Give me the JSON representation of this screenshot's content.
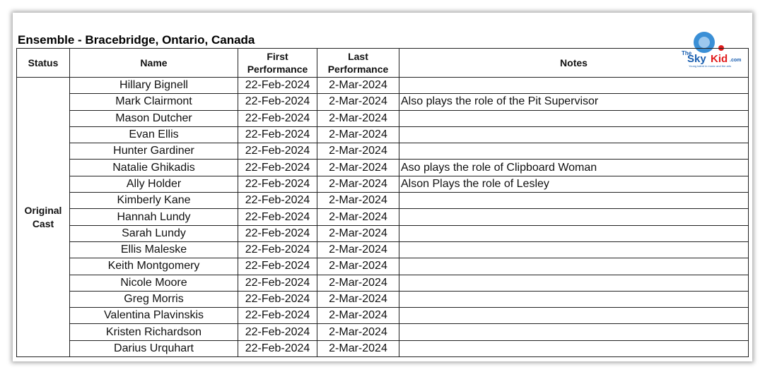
{
  "title": "Ensemble - Bracebridge, Ontario, Canada",
  "logo": {
    "text_the": "The",
    "text_sky": "Sky",
    "text_kid": "Kid",
    ".com": ".com",
    "tagline": "Young talent in music and the arts"
  },
  "headers": {
    "status": "Status",
    "name": "Name",
    "first": "First Performance",
    "last": "Last Performance",
    "notes": "Notes"
  },
  "status_group": "Original Cast",
  "rows": [
    {
      "name": "Hillary Bignell",
      "first": "22-Feb-2024",
      "last": "2-Mar-2024",
      "notes": ""
    },
    {
      "name": "Mark Clairmont",
      "first": "22-Feb-2024",
      "last": "2-Mar-2024",
      "notes": "Also plays the role of the Pit Supervisor"
    },
    {
      "name": "Mason Dutcher",
      "first": "22-Feb-2024",
      "last": "2-Mar-2024",
      "notes": ""
    },
    {
      "name": "Evan Ellis",
      "first": "22-Feb-2024",
      "last": "2-Mar-2024",
      "notes": ""
    },
    {
      "name": "Hunter Gardiner",
      "first": "22-Feb-2024",
      "last": "2-Mar-2024",
      "notes": ""
    },
    {
      "name": "Natalie Ghikadis",
      "first": "22-Feb-2024",
      "last": "2-Mar-2024",
      "notes": "Aso plays the role of Clipboard Woman"
    },
    {
      "name": "Ally Holder",
      "first": "22-Feb-2024",
      "last": "2-Mar-2024",
      "notes": "Alson Plays the role of Lesley"
    },
    {
      "name": "Kimberly Kane",
      "first": "22-Feb-2024",
      "last": "2-Mar-2024",
      "notes": ""
    },
    {
      "name": "Hannah Lundy",
      "first": "22-Feb-2024",
      "last": "2-Mar-2024",
      "notes": ""
    },
    {
      "name": "Sarah Lundy",
      "first": "22-Feb-2024",
      "last": "2-Mar-2024",
      "notes": ""
    },
    {
      "name": "Ellis Maleske",
      "first": "22-Feb-2024",
      "last": "2-Mar-2024",
      "notes": ""
    },
    {
      "name": "Keith Montgomery",
      "first": "22-Feb-2024",
      "last": "2-Mar-2024",
      "notes": ""
    },
    {
      "name": "Nicole Moore",
      "first": "22-Feb-2024",
      "last": "2-Mar-2024",
      "notes": ""
    },
    {
      "name": "Greg Morris",
      "first": "22-Feb-2024",
      "last": "2-Mar-2024",
      "notes": ""
    },
    {
      "name": "Valentina Plavinskis",
      "first": "22-Feb-2024",
      "last": "2-Mar-2024",
      "notes": ""
    },
    {
      "name": "Kristen Richardson",
      "first": "22-Feb-2024",
      "last": "2-Mar-2024",
      "notes": ""
    },
    {
      "name": "Darius Urquhart",
      "first": "22-Feb-2024",
      "last": "2-Mar-2024",
      "notes": ""
    }
  ]
}
